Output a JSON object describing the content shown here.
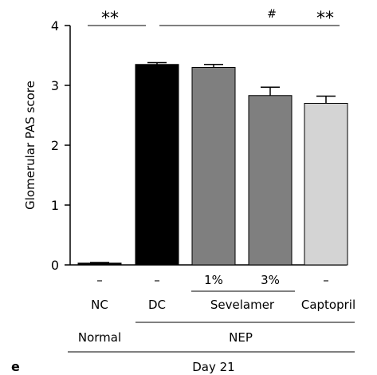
{
  "panel_label": "e",
  "chart_data": {
    "type": "bar",
    "ylabel": "Glomerular PAS score",
    "ylim": [
      0,
      4
    ],
    "yticks": [
      "0",
      "1",
      "2",
      "3",
      "4"
    ],
    "categories": [
      "NC",
      "DC",
      "Sevelamer 1%",
      "Sevelamer 3%",
      "Captopril"
    ],
    "values": [
      0.03,
      3.35,
      3.3,
      2.83,
      2.7
    ],
    "errors": [
      0.01,
      0.03,
      0.05,
      0.14,
      0.12
    ],
    "colors": [
      "#000000",
      "#000000",
      "#7f7f7f",
      "#7f7f7f",
      "#d4d4d4"
    ],
    "dose_row": [
      "–",
      "–",
      "1%",
      "3%",
      "–"
    ],
    "group_row": [
      "NC",
      "DC",
      "Sevelamer",
      "Captopril"
    ],
    "state_row": [
      "Normal",
      "NEP"
    ],
    "day_label": "Day 21",
    "significance": {
      "nc_vs_dc": "**",
      "dc_line_hash": "#",
      "captopril": "**"
    }
  }
}
